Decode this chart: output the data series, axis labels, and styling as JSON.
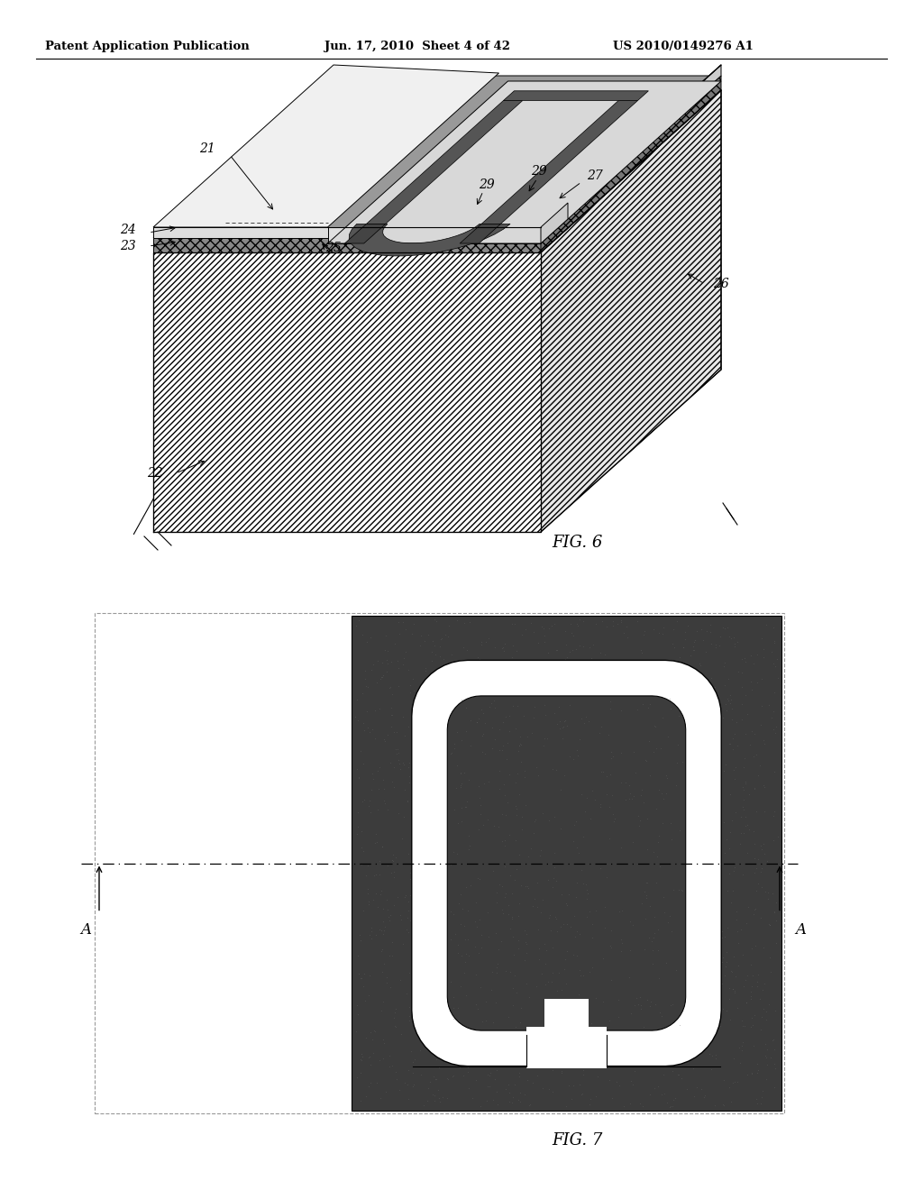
{
  "page_header_left": "Patent Application Publication",
  "page_header_mid": "Jun. 17, 2010  Sheet 4 of 42",
  "page_header_right": "US 2010/0149276 A1",
  "fig6_label": "FIG. 6",
  "fig7_label": "FIG. 7",
  "bg_color": "#ffffff"
}
